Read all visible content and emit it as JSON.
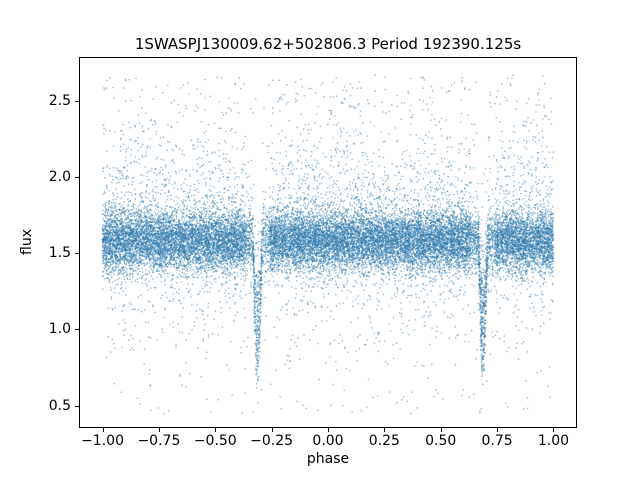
{
  "chart_data": {
    "type": "scatter",
    "title": "1SWASPJ130009.62+502806.3 Period 192390.125s",
    "xlabel": "phase",
    "ylabel": "flux",
    "xlim": [
      -1.1,
      1.1
    ],
    "ylim": [
      0.36,
      2.78
    ],
    "xticks": {
      "values": [
        -1.0,
        -0.75,
        -0.5,
        -0.25,
        0.0,
        0.25,
        0.5,
        0.75,
        1.0
      ],
      "labels": [
        "−1.00",
        "−0.75",
        "−0.50",
        "−0.25",
        "0.00",
        "0.25",
        "0.50",
        "0.75",
        "1.00"
      ]
    },
    "yticks": {
      "values": [
        0.5,
        1.0,
        1.5,
        2.0,
        2.5
      ],
      "labels": [
        "0.5",
        "1.0",
        "1.5",
        "2.0",
        "2.5"
      ]
    },
    "grid": false,
    "legend": null,
    "marker_color": "#2e79ae",
    "marker_alpha": 0.5,
    "marker_size_px": 1.4,
    "description": "Phase-folded light curve: dense flux band near 1.55-1.65 across phase -1 to 1, sparse scatter up to ~2.65 and down to ~0.45, narrow eclipse dips near phase -0.31 and 0.69 reaching flux ~0.6 with sparser flanking regions",
    "scatter_model": {
      "seed": 20130009,
      "n_points": 24000,
      "x_range": [
        -1.0,
        1.0
      ],
      "band_mean": 1.575,
      "band_sigma": 0.095,
      "upper_tail_fraction": 0.14,
      "upper_tail_start": 1.62,
      "upper_tail_scale": 0.3,
      "lower_tail_fraction": 0.055,
      "lower_tail_start": 1.47,
      "lower_tail_scale": 0.27,
      "flux_min": 0.44,
      "flux_max": 2.67,
      "eclipses": [
        {
          "center": -0.3125,
          "half_width": 0.02,
          "depth": 0.88
        },
        {
          "center": 0.6875,
          "half_width": 0.02,
          "depth": 0.88
        }
      ],
      "gap_half_width": 0.055,
      "gap_drop_prob": 0.45
    }
  }
}
